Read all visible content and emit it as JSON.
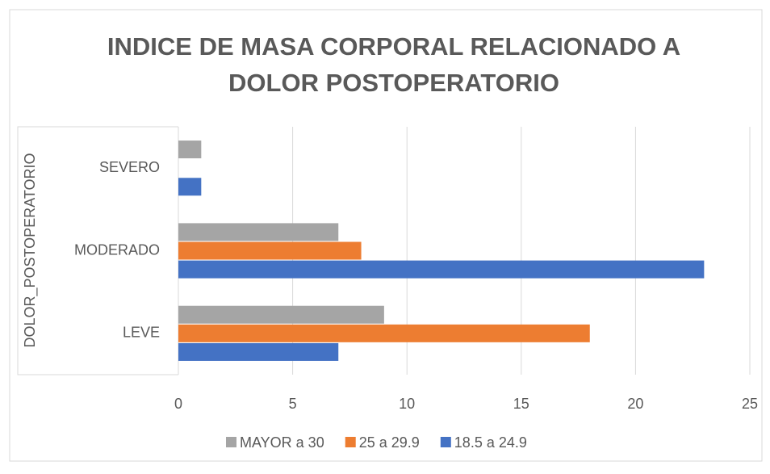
{
  "chart_data": {
    "type": "hbar",
    "title": [
      "INDICE DE MASA CORPORAL RELACIONADO A",
      "DOLOR POSTOPERATORIO"
    ],
    "y_label": "DOLOR_POSTOPERATORIO",
    "categories": [
      "LEVE",
      "MODERADO",
      "SEVERO"
    ],
    "series": [
      {
        "name": "18.5 a 24.9",
        "color": "#4472c4",
        "values": [
          7,
          23,
          1
        ]
      },
      {
        "name": "25 a 29.9",
        "color": "#ed7d31",
        "values": [
          18,
          8,
          0
        ]
      },
      {
        "name": "MAYOR a 30",
        "color": "#a5a5a5",
        "values": [
          9,
          7,
          1
        ]
      }
    ],
    "xlim": [
      0,
      25
    ],
    "xticks": [
      0,
      5,
      10,
      15,
      20,
      25
    ],
    "grid": true,
    "legend": "bottom"
  }
}
